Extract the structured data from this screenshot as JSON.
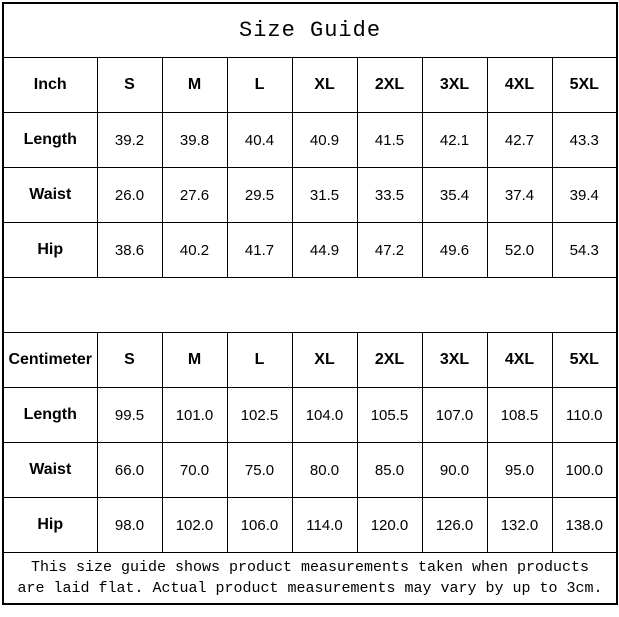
{
  "title": "Size Guide",
  "colors": {
    "border": "#000000",
    "text": "#000000",
    "background": "#ffffff"
  },
  "tables": [
    {
      "unit_label": "Inch",
      "sizes": [
        "S",
        "M",
        "L",
        "XL",
        "2XL",
        "3XL",
        "4XL",
        "5XL"
      ],
      "rows": [
        {
          "label": "Length",
          "values": [
            "39.2",
            "39.8",
            "40.4",
            "40.9",
            "41.5",
            "42.1",
            "42.7",
            "43.3"
          ]
        },
        {
          "label": "Waist",
          "values": [
            "26.0",
            "27.6",
            "29.5",
            "31.5",
            "33.5",
            "35.4",
            "37.4",
            "39.4"
          ]
        },
        {
          "label": "Hip",
          "values": [
            "38.6",
            "40.2",
            "41.7",
            "44.9",
            "47.2",
            "49.6",
            "52.0",
            "54.3"
          ]
        }
      ]
    },
    {
      "unit_label": "Centimeter",
      "sizes": [
        "S",
        "M",
        "L",
        "XL",
        "2XL",
        "3XL",
        "4XL",
        "5XL"
      ],
      "rows": [
        {
          "label": "Length",
          "values": [
            "99.5",
            "101.0",
            "102.5",
            "104.0",
            "105.5",
            "107.0",
            "108.5",
            "110.0"
          ]
        },
        {
          "label": "Waist",
          "values": [
            "66.0",
            "70.0",
            "75.0",
            "80.0",
            "85.0",
            "90.0",
            "95.0",
            "100.0"
          ]
        },
        {
          "label": "Hip",
          "values": [
            "98.0",
            "102.0",
            "106.0",
            "114.0",
            "120.0",
            "126.0",
            "132.0",
            "138.0"
          ]
        }
      ]
    }
  ],
  "footer": {
    "line1": "This size guide shows product measurements taken when products",
    "line2": "are laid flat. Actual product measurements may vary by up to 3cm."
  }
}
